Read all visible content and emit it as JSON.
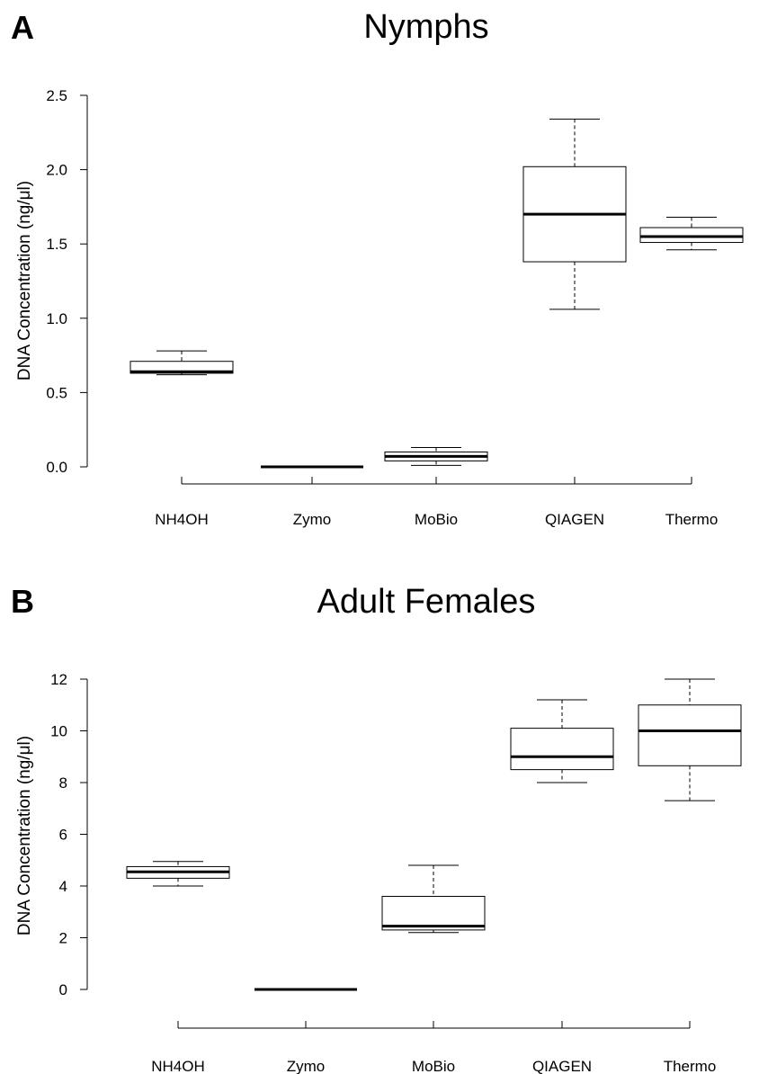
{
  "chart_data": [
    {
      "type": "box",
      "panel": "A",
      "title": "Nymphs",
      "ylabel": "DNA Concentration (ng/μl)",
      "ylim": [
        0,
        2.5
      ],
      "yticks": [
        "0.0",
        "0.5",
        "1.0",
        "1.5",
        "2.0",
        "2.5"
      ],
      "categories": [
        "NH4OH",
        "Zymo",
        "MoBio",
        "QIAGEN",
        "Thermo"
      ],
      "boxes": [
        {
          "min": 0.62,
          "q1": 0.63,
          "median": 0.64,
          "q3": 0.71,
          "max": 0.78
        },
        {
          "min": 0.0,
          "q1": 0.0,
          "median": 0.0,
          "q3": 0.0,
          "max": 0.0
        },
        {
          "min": 0.01,
          "q1": 0.04,
          "median": 0.07,
          "q3": 0.1,
          "max": 0.13
        },
        {
          "min": 1.06,
          "q1": 1.38,
          "median": 1.7,
          "q3": 2.02,
          "max": 2.34
        },
        {
          "min": 1.46,
          "q1": 1.51,
          "median": 1.55,
          "q3": 1.61,
          "max": 1.68
        }
      ]
    },
    {
      "type": "box",
      "panel": "B",
      "title": "Adult Females",
      "ylabel": "DNA Concentration (ng/μl)",
      "ylim": [
        0,
        12
      ],
      "yticks": [
        "0",
        "2",
        "4",
        "6",
        "8",
        "10",
        "12"
      ],
      "categories": [
        "NH4OH",
        "Zymo",
        "MoBio",
        "QIAGEN",
        "Thermo"
      ],
      "boxes": [
        {
          "min": 4.0,
          "q1": 4.3,
          "median": 4.55,
          "q3": 4.75,
          "max": 4.95
        },
        {
          "min": 0.0,
          "q1": 0.0,
          "median": 0.0,
          "q3": 0.0,
          "max": 0.0
        },
        {
          "min": 2.2,
          "q1": 2.3,
          "median": 2.45,
          "q3": 3.6,
          "max": 4.8
        },
        {
          "min": 8.0,
          "q1": 8.5,
          "median": 9.0,
          "q3": 10.1,
          "max": 11.2
        },
        {
          "min": 7.3,
          "q1": 8.65,
          "median": 10.0,
          "q3": 11.0,
          "max": 12.0
        }
      ]
    }
  ]
}
